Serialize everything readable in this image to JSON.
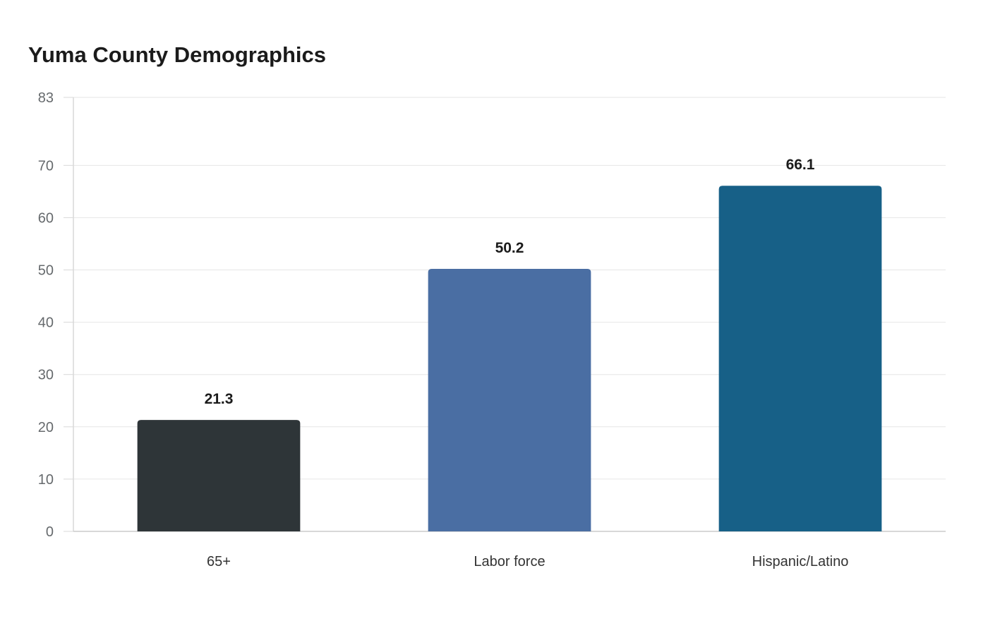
{
  "chart_data": {
    "type": "bar",
    "title": "Yuma County Demographics",
    "xlabel": "",
    "ylabel": "",
    "categories": [
      "65+",
      "Labor force",
      "Hispanic/Latino"
    ],
    "values": [
      21.3,
      50.2,
      66.1
    ],
    "ylim": [
      0,
      83
    ],
    "yticks": [
      0,
      10,
      20,
      30,
      40,
      50,
      60,
      70,
      83
    ],
    "grid": true,
    "legend": "none",
    "colors": [
      "#2e3538",
      "#4a6ea3",
      "#176087"
    ]
  }
}
